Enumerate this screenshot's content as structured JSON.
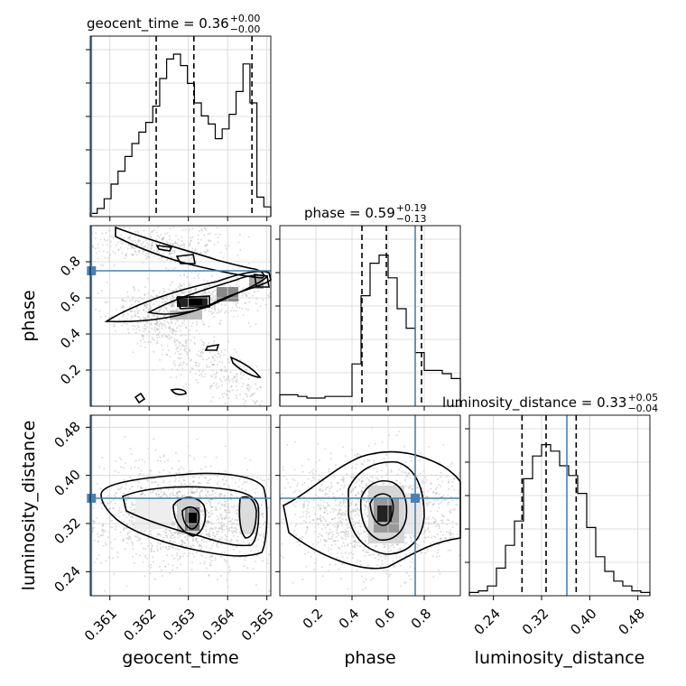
{
  "chart_data": {
    "type": "corner",
    "parameters": [
      "geocent_time",
      "phase",
      "luminosity_distance"
    ],
    "titles": {
      "geocent_time": {
        "name": "geocent_time",
        "median": "0.36",
        "plus": "+0.00",
        "minus": "−0.00"
      },
      "phase": {
        "name": "phase",
        "median": "0.59",
        "plus": "+0.19",
        "minus": "−0.13"
      },
      "luminosity_distance": {
        "name": "luminosity_distance",
        "median": "0.33",
        "plus": "+0.05",
        "minus": "−0.04"
      }
    },
    "ranges": {
      "geocent_time": [
        0.3605,
        0.3651
      ],
      "phase": [
        0.0,
        1.0
      ],
      "luminosity_distance": [
        0.2,
        0.5
      ]
    },
    "ticks": {
      "geocent_time": [
        "0.361",
        "0.362",
        "0.363",
        "0.364",
        "0.365"
      ],
      "phase": [
        "0.2",
        "0.4",
        "0.6",
        "0.8"
      ],
      "luminosity_distance": [
        "0.24",
        "0.32",
        "0.40",
        "0.48"
      ]
    },
    "truths": {
      "geocent_time": 0.36053,
      "phase": 0.75,
      "luminosity_distance": 0.362
    },
    "quantiles": {
      "geocent_time": [
        0.36218,
        0.36314,
        0.36462
      ],
      "phase": [
        0.455,
        0.59,
        0.785
      ],
      "luminosity_distance": [
        0.2875,
        0.3275,
        0.3775
      ]
    },
    "hist": {
      "geocent_time": [
        2,
        5,
        11,
        20,
        28,
        37,
        45,
        52,
        58,
        68,
        85,
        97,
        100,
        93,
        82,
        70,
        62,
        57,
        48,
        54,
        63,
        77,
        94,
        70,
        12,
        6
      ],
      "phase": [
        7,
        7,
        6,
        5,
        5,
        6,
        6,
        6,
        26,
        68,
        88,
        93,
        79,
        60,
        48,
        33,
        22,
        22,
        20,
        17
      ],
      "luminosity_distance": [
        2,
        3,
        6,
        17,
        31,
        46,
        72,
        86,
        93,
        89,
        80,
        74,
        63,
        42,
        24,
        15,
        9,
        6,
        3,
        2
      ]
    },
    "grid": true
  },
  "labels": {
    "x": [
      "geocent_time",
      "phase",
      "luminosity_distance"
    ],
    "y": [
      "phase",
      "luminosity_distance"
    ]
  }
}
